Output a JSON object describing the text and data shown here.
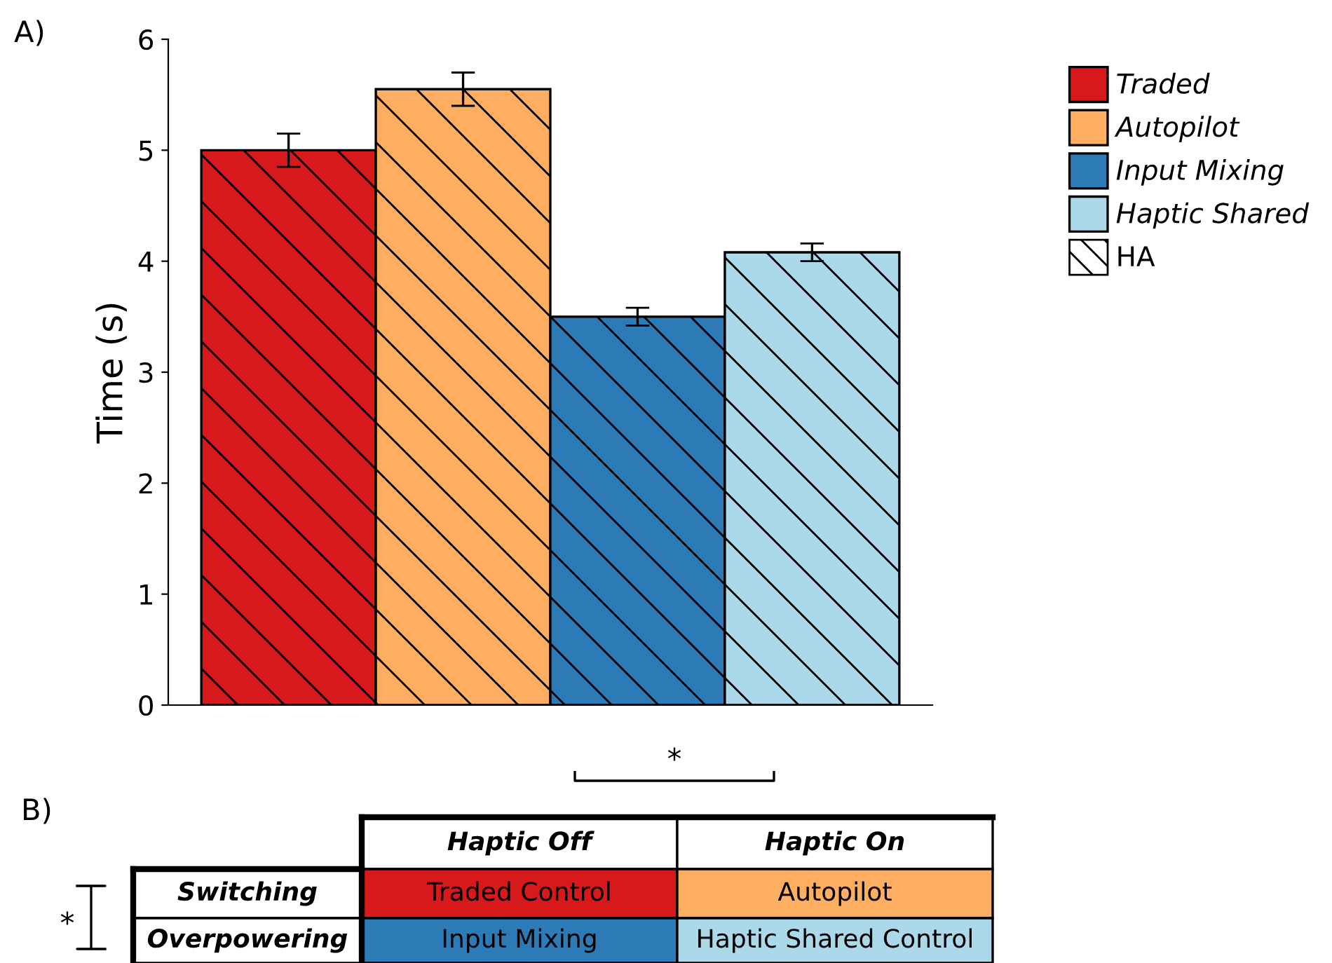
{
  "chart_data": [
    {
      "type": "bar",
      "title": "A)",
      "ylabel": "Time (s)",
      "categories": [
        null
      ],
      "series": [
        {
          "name": "Traded",
          "color": "#d7191c",
          "values": [
            5.0
          ],
          "errors": [
            0.15
          ]
        },
        {
          "name": "Autopilot",
          "color": "#fdae61",
          "values": [
            5.55
          ],
          "errors": [
            0.15
          ]
        },
        {
          "name": "Input Mixing",
          "color": "#2c7bb6",
          "values": [
            3.5
          ],
          "errors": [
            0.08
          ]
        },
        {
          "name": "Haptic Shared",
          "color": "#abd9e9",
          "values": [
            4.08
          ],
          "errors": [
            0.08
          ]
        }
      ],
      "annotations": [
        "HA"
      ],
      "ylim": [
        0,
        6
      ],
      "yticks": [
        0,
        1,
        2,
        3,
        4,
        5,
        6
      ],
      "grid": false,
      "legend": "top right"
    },
    {
      "type": "other",
      "title": "B)",
      "categories": [
        "Haptic Off",
        "Haptic On"
      ],
      "y_categories": [
        "Switching",
        "Overpowering"
      ],
      "cell_labels": [
        [
          "Traded Control",
          "Autopilot"
        ],
        [
          "Input Mixing",
          "Haptic Shared Control"
        ]
      ],
      "annotations": [
        "*",
        "*"
      ]
    }
  ]
}
